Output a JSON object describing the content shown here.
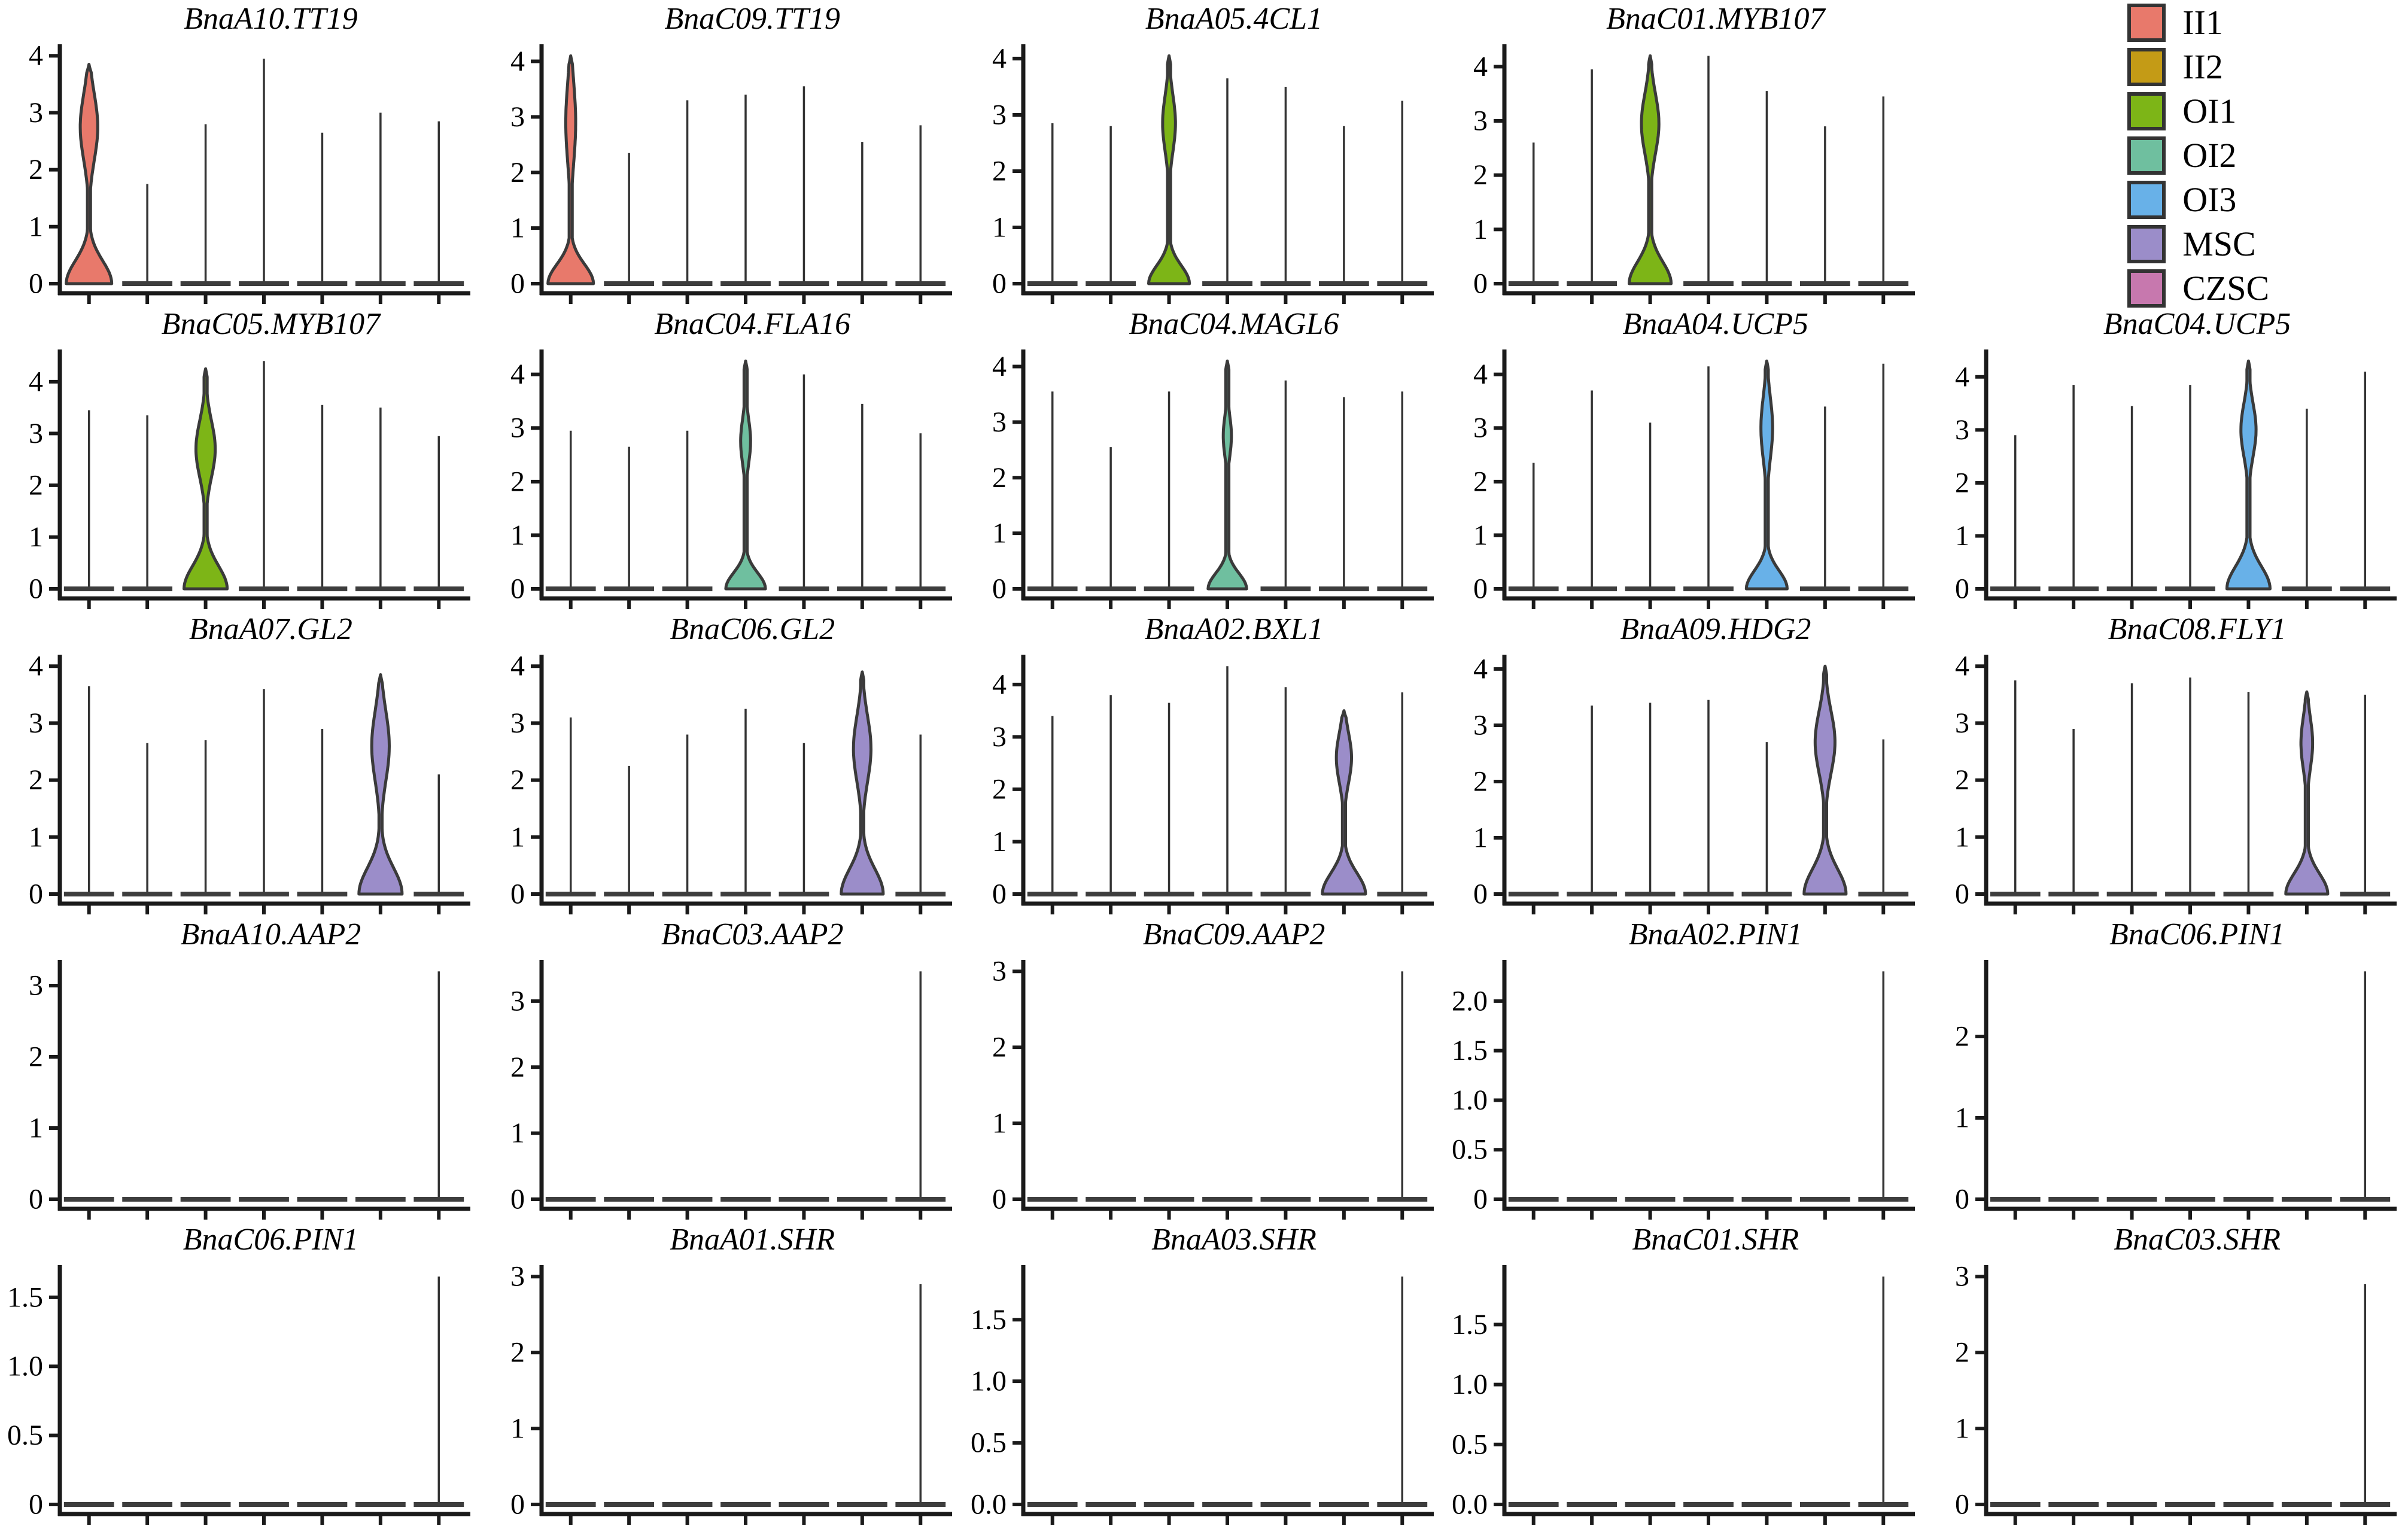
{
  "figure": {
    "background": "#ffffff",
    "grid": {
      "rows": 5,
      "cols": 5
    }
  },
  "legend": {
    "position": "top-right",
    "items": [
      {
        "label": "II1",
        "color": "#E8796B"
      },
      {
        "label": "II2",
        "color": "#C49B16"
      },
      {
        "label": "OI1",
        "color": "#7DB517"
      },
      {
        "label": "OI2",
        "color": "#6FBF9F"
      },
      {
        "label": "OI3",
        "color": "#68B1E8"
      },
      {
        "label": "MSC",
        "color": "#9B8DC9"
      },
      {
        "label": "CZSC",
        "color": "#C778AE"
      }
    ]
  },
  "chart_data": [
    {
      "type": "violin",
      "title": "BnaA10.TT19",
      "row": 1,
      "col": 1,
      "categories": [
        "II1",
        "II2",
        "OI1",
        "OI2",
        "OI3",
        "MSC",
        "CZSC"
      ],
      "yticks": [
        0,
        1,
        2,
        3,
        4
      ],
      "ytick_labels": [
        "0",
        "1",
        "2",
        "3",
        "4"
      ],
      "spikes": [
        null,
        1.75,
        2.8,
        3.95,
        2.65,
        3.0,
        2.85
      ],
      "violin": {
        "category": "II1",
        "pos": 0,
        "color": "#E8796B",
        "tip": 3.85,
        "base_w": 0.78,
        "base_s": 0.4,
        "bulge_w": 0.3,
        "bulge_mu": 2.75,
        "bulge_s": 0.58
      }
    },
    {
      "type": "violin",
      "title": "BnaC09.TT19",
      "row": 1,
      "col": 2,
      "categories": [
        "II1",
        "II2",
        "OI1",
        "OI2",
        "OI3",
        "MSC",
        "CZSC"
      ],
      "yticks": [
        0,
        1,
        2,
        3,
        4
      ],
      "ytick_labels": [
        "0",
        "1",
        "2",
        "3",
        "4"
      ],
      "spikes": [
        null,
        2.35,
        3.3,
        3.4,
        3.55,
        2.55,
        2.85
      ],
      "violin": {
        "category": "II1",
        "pos": 0,
        "color": "#E8796B",
        "tip": 4.1,
        "base_w": 0.78,
        "base_s": 0.35,
        "bulge_w": 0.17,
        "bulge_mu": 2.9,
        "bulge_s": 0.72
      }
    },
    {
      "type": "violin",
      "title": "BnaA05.4CL1",
      "row": 1,
      "col": 3,
      "categories": [
        "II1",
        "II2",
        "OI1",
        "OI2",
        "OI3",
        "MSC",
        "CZSC"
      ],
      "yticks": [
        0,
        1,
        2,
        3,
        4
      ],
      "ytick_labels": [
        "0",
        "1",
        "2",
        "3",
        "4"
      ],
      "spikes": [
        2.85,
        2.8,
        null,
        3.65,
        3.5,
        2.8,
        3.25
      ],
      "violin": {
        "category": "OI1",
        "pos": 2,
        "color": "#7DB517",
        "tip": 4.05,
        "base_w": 0.7,
        "base_s": 0.32,
        "bulge_w": 0.22,
        "bulge_mu": 2.85,
        "bulge_s": 0.5
      }
    },
    {
      "type": "violin",
      "title": "BnaC01.MYB107",
      "row": 1,
      "col": 4,
      "categories": [
        "II1",
        "II2",
        "OI1",
        "OI2",
        "OI3",
        "MSC",
        "CZSC"
      ],
      "yticks": [
        0,
        1,
        2,
        3,
        4
      ],
      "ytick_labels": [
        "0",
        "1",
        "2",
        "3",
        "4"
      ],
      "spikes": [
        2.6,
        3.95,
        null,
        4.2,
        3.55,
        2.9,
        3.45
      ],
      "violin": {
        "category": "OI1",
        "pos": 2,
        "color": "#7DB517",
        "tip": 4.2,
        "base_w": 0.72,
        "base_s": 0.4,
        "bulge_w": 0.3,
        "bulge_mu": 2.95,
        "bulge_s": 0.55
      }
    },
    {
      "type": "violin",
      "title": "BnaC05.MYB107",
      "row": 2,
      "col": 1,
      "categories": [
        "II1",
        "II2",
        "OI1",
        "OI2",
        "OI3",
        "MSC",
        "CZSC"
      ],
      "yticks": [
        0,
        1,
        2,
        3,
        4
      ],
      "ytick_labels": [
        "0",
        "1",
        "2",
        "3",
        "4"
      ],
      "spikes": [
        3.45,
        3.35,
        null,
        4.4,
        3.55,
        3.5,
        2.95
      ],
      "violin": {
        "category": "OI1",
        "pos": 2,
        "color": "#7DB517",
        "tip": 4.25,
        "base_w": 0.74,
        "base_s": 0.44,
        "bulge_w": 0.33,
        "bulge_mu": 2.7,
        "bulge_s": 0.55
      }
    },
    {
      "type": "violin",
      "title": "BnaC04.FLA16",
      "row": 2,
      "col": 2,
      "categories": [
        "II1",
        "II2",
        "OI1",
        "OI2",
        "OI3",
        "MSC",
        "CZSC"
      ],
      "yticks": [
        0,
        1,
        2,
        3,
        4
      ],
      "ytick_labels": [
        "0",
        "1",
        "2",
        "3",
        "4"
      ],
      "spikes": [
        2.95,
        2.65,
        2.95,
        null,
        4.0,
        3.45,
        2.9
      ],
      "violin": {
        "category": "OI2",
        "pos": 3,
        "color": "#6FBF9F",
        "tip": 4.25,
        "base_w": 0.68,
        "base_s": 0.3,
        "bulge_w": 0.17,
        "bulge_mu": 2.75,
        "bulge_s": 0.42
      }
    },
    {
      "type": "violin",
      "title": "BnaC04.MAGL6",
      "row": 2,
      "col": 3,
      "categories": [
        "II1",
        "II2",
        "OI1",
        "OI2",
        "OI3",
        "MSC",
        "CZSC"
      ],
      "yticks": [
        0,
        1,
        2,
        3,
        4
      ],
      "ytick_labels": [
        "0",
        "1",
        "2",
        "3",
        "4"
      ],
      "spikes": [
        3.55,
        2.55,
        3.55,
        null,
        3.75,
        3.45,
        3.55
      ],
      "violin": {
        "category": "OI2",
        "pos": 3,
        "color": "#6FBF9F",
        "tip": 4.1,
        "base_w": 0.66,
        "base_s": 0.28,
        "bulge_w": 0.14,
        "bulge_mu": 2.75,
        "bulge_s": 0.36
      }
    },
    {
      "type": "violin",
      "title": "BnaA04.UCP5",
      "row": 2,
      "col": 4,
      "categories": [
        "II1",
        "II2",
        "OI1",
        "OI2",
        "OI3",
        "MSC",
        "CZSC"
      ],
      "yticks": [
        0,
        1,
        2,
        3,
        4
      ],
      "ytick_labels": [
        "0",
        "1",
        "2",
        "3",
        "4"
      ],
      "spikes": [
        2.35,
        3.7,
        3.1,
        4.15,
        null,
        3.4,
        4.2
      ],
      "violin": {
        "category": "OI3",
        "pos": 4,
        "color": "#68B1E8",
        "tip": 4.25,
        "base_w": 0.7,
        "base_s": 0.34,
        "bulge_w": 0.2,
        "bulge_mu": 3.0,
        "bulge_s": 0.58
      }
    },
    {
      "type": "violin",
      "title": "BnaC04.UCP5",
      "row": 2,
      "col": 5,
      "categories": [
        "II1",
        "II2",
        "OI1",
        "OI2",
        "OI3",
        "MSC",
        "CZSC"
      ],
      "yticks": [
        0,
        1,
        2,
        3,
        4
      ],
      "ytick_labels": [
        "0",
        "1",
        "2",
        "3",
        "4"
      ],
      "spikes": [
        2.9,
        3.85,
        3.45,
        3.85,
        null,
        3.4,
        4.1
      ],
      "violin": {
        "category": "OI3",
        "pos": 4,
        "color": "#68B1E8",
        "tip": 4.3,
        "base_w": 0.74,
        "base_s": 0.42,
        "bulge_w": 0.26,
        "bulge_mu": 3.0,
        "bulge_s": 0.5
      }
    },
    {
      "type": "violin",
      "title": "BnaA07.GL2",
      "row": 3,
      "col": 1,
      "categories": [
        "II1",
        "II2",
        "OI1",
        "OI2",
        "OI3",
        "MSC",
        "CZSC"
      ],
      "yticks": [
        0,
        1,
        2,
        3,
        4
      ],
      "ytick_labels": [
        "0",
        "1",
        "2",
        "3",
        "4"
      ],
      "spikes": [
        3.65,
        2.65,
        2.7,
        3.6,
        2.9,
        null,
        2.1
      ],
      "violin": {
        "category": "MSC",
        "pos": 5,
        "color": "#9B8DC9",
        "tip": 3.85,
        "base_w": 0.74,
        "base_s": 0.46,
        "bulge_w": 0.3,
        "bulge_mu": 2.6,
        "bulge_s": 0.62
      }
    },
    {
      "type": "violin",
      "title": "BnaC06.GL2",
      "row": 3,
      "col": 2,
      "categories": [
        "II1",
        "II2",
        "OI1",
        "OI2",
        "OI3",
        "MSC",
        "CZSC"
      ],
      "yticks": [
        0,
        1,
        2,
        3,
        4
      ],
      "ytick_labels": [
        "0",
        "1",
        "2",
        "3",
        "4"
      ],
      "spikes": [
        3.1,
        2.25,
        2.8,
        3.25,
        2.65,
        null,
        2.8
      ],
      "violin": {
        "category": "MSC",
        "pos": 5,
        "color": "#9B8DC9",
        "tip": 3.9,
        "base_w": 0.72,
        "base_s": 0.44,
        "bulge_w": 0.3,
        "bulge_mu": 2.55,
        "bulge_s": 0.58
      }
    },
    {
      "type": "violin",
      "title": "BnaA02.BXL1",
      "row": 3,
      "col": 3,
      "categories": [
        "II1",
        "II2",
        "OI1",
        "OI2",
        "OI3",
        "MSC",
        "CZSC"
      ],
      "yticks": [
        0,
        1,
        2,
        3,
        4
      ],
      "ytick_labels": [
        "0",
        "1",
        "2",
        "3",
        "4"
      ],
      "spikes": [
        3.4,
        3.8,
        3.65,
        4.35,
        3.95,
        null,
        3.85
      ],
      "violin": {
        "category": "MSC",
        "pos": 5,
        "color": "#9B8DC9",
        "tip": 3.5,
        "base_w": 0.74,
        "base_s": 0.4,
        "bulge_w": 0.26,
        "bulge_mu": 2.6,
        "bulge_s": 0.48
      }
    },
    {
      "type": "violin",
      "title": "BnaA09.HDG2",
      "row": 3,
      "col": 4,
      "categories": [
        "II1",
        "II2",
        "OI1",
        "OI2",
        "OI3",
        "MSC",
        "CZSC"
      ],
      "yticks": [
        0,
        1,
        2,
        3,
        4
      ],
      "ytick_labels": [
        "0",
        "1",
        "2",
        "3",
        "4"
      ],
      "spikes": [
        0,
        3.35,
        3.4,
        3.45,
        2.7,
        null,
        2.75
      ],
      "violin": {
        "category": "MSC",
        "pos": 5,
        "color": "#9B8DC9",
        "tip": 4.05,
        "base_w": 0.72,
        "base_s": 0.44,
        "bulge_w": 0.34,
        "bulge_mu": 2.7,
        "bulge_s": 0.55
      }
    },
    {
      "type": "violin",
      "title": "BnaC08.FLY1",
      "row": 3,
      "col": 5,
      "categories": [
        "II1",
        "II2",
        "OI1",
        "OI2",
        "OI3",
        "MSC",
        "CZSC"
      ],
      "yticks": [
        0,
        1,
        2,
        3,
        4
      ],
      "ytick_labels": [
        "0",
        "1",
        "2",
        "3",
        "4"
      ],
      "spikes": [
        3.75,
        2.9,
        3.7,
        3.8,
        3.55,
        null,
        3.5
      ],
      "violin": {
        "category": "MSC",
        "pos": 5,
        "color": "#9B8DC9",
        "tip": 3.55,
        "base_w": 0.72,
        "base_s": 0.36,
        "bulge_w": 0.2,
        "bulge_mu": 2.65,
        "bulge_s": 0.45
      }
    },
    {
      "type": "violin",
      "title": "BnaA10.AAP2",
      "row": 4,
      "col": 1,
      "categories": [
        "II1",
        "II2",
        "OI1",
        "OI2",
        "OI3",
        "MSC",
        "CZSC"
      ],
      "yticks": [
        0,
        1,
        2,
        3
      ],
      "ytick_labels": [
        "0",
        "1",
        "2",
        "3"
      ],
      "spikes": [
        0,
        0,
        0,
        0,
        0,
        0,
        3.2
      ],
      "violin": null
    },
    {
      "type": "violin",
      "title": "BnaC03.AAP2",
      "row": 4,
      "col": 2,
      "categories": [
        "II1",
        "II2",
        "OI1",
        "OI2",
        "OI3",
        "MSC",
        "CZSC"
      ],
      "yticks": [
        0,
        1,
        2,
        3
      ],
      "ytick_labels": [
        "0",
        "1",
        "2",
        "3"
      ],
      "spikes": [
        0,
        0,
        0,
        0,
        0,
        0,
        3.45
      ],
      "violin": null
    },
    {
      "type": "violin",
      "title": "BnaC09.AAP2",
      "row": 4,
      "col": 3,
      "categories": [
        "II1",
        "II2",
        "OI1",
        "OI2",
        "OI3",
        "MSC",
        "CZSC"
      ],
      "yticks": [
        0,
        1,
        2,
        3
      ],
      "ytick_labels": [
        "0",
        "1",
        "2",
        "3"
      ],
      "spikes": [
        0,
        0,
        0,
        0,
        0,
        0,
        3.0
      ],
      "violin": null
    },
    {
      "type": "violin",
      "title": "BnaA02.PIN1",
      "row": 4,
      "col": 4,
      "categories": [
        "II1",
        "II2",
        "OI1",
        "OI2",
        "OI3",
        "MSC",
        "CZSC"
      ],
      "yticks": [
        0,
        0.5,
        1,
        1.5,
        2
      ],
      "ytick_labels": [
        "0",
        "0.5",
        "1.0",
        "1.5",
        "2.0"
      ],
      "spikes": [
        0,
        0,
        0,
        0,
        0,
        0,
        2.3
      ],
      "violin": null
    },
    {
      "type": "violin",
      "title": "BnaC06.PIN1",
      "row": 4,
      "col": 5,
      "categories": [
        "II1",
        "II2",
        "OI1",
        "OI2",
        "OI3",
        "MSC",
        "CZSC"
      ],
      "yticks": [
        0,
        1,
        2
      ],
      "ytick_labels": [
        "0",
        "1",
        "2"
      ],
      "spikes": [
        0,
        0,
        0,
        0,
        0,
        0,
        2.8
      ],
      "violin": null
    },
    {
      "type": "violin",
      "title": "BnaC06.PIN1",
      "row": 5,
      "col": 1,
      "categories": [
        "II1",
        "II2",
        "OI1",
        "OI2",
        "OI3",
        "MSC",
        "CZSC"
      ],
      "yticks": [
        0,
        0.5,
        1,
        1.5
      ],
      "ytick_labels": [
        "0",
        "0.5",
        "1.0",
        "1.5"
      ],
      "spikes": [
        0,
        0,
        0,
        0,
        0,
        0,
        1.65
      ],
      "violin": null
    },
    {
      "type": "violin",
      "title": "BnaA01.SHR",
      "row": 5,
      "col": 2,
      "categories": [
        "II1",
        "II2",
        "OI1",
        "OI2",
        "OI3",
        "MSC",
        "CZSC"
      ],
      "yticks": [
        0,
        1,
        2,
        3
      ],
      "ytick_labels": [
        "0",
        "1",
        "2",
        "3"
      ],
      "spikes": [
        0,
        0,
        0,
        0,
        0,
        0,
        2.9
      ],
      "violin": null
    },
    {
      "type": "violin",
      "title": "BnaA03.SHR",
      "row": 5,
      "col": 3,
      "categories": [
        "II1",
        "II2",
        "OI1",
        "OI2",
        "OI3",
        "MSC",
        "CZSC"
      ],
      "yticks": [
        0,
        0.5,
        1,
        1.5
      ],
      "ytick_labels": [
        "0.0",
        "0.5",
        "1.0",
        "1.5"
      ],
      "spikes": [
        0,
        0,
        0,
        0,
        0,
        0,
        1.85
      ],
      "violin": null
    },
    {
      "type": "violin",
      "title": "BnaC01.SHR",
      "row": 5,
      "col": 4,
      "categories": [
        "II1",
        "II2",
        "OI1",
        "OI2",
        "OI3",
        "MSC",
        "CZSC"
      ],
      "yticks": [
        0,
        0.5,
        1,
        1.5
      ],
      "ytick_labels": [
        "0.0",
        "0.5",
        "1.0",
        "1.5"
      ],
      "spikes": [
        0,
        0,
        0,
        0,
        0,
        0,
        1.9
      ],
      "violin": null
    },
    {
      "type": "violin",
      "title": "BnaC03.SHR",
      "row": 5,
      "col": 5,
      "categories": [
        "II1",
        "II2",
        "OI1",
        "OI2",
        "OI3",
        "MSC",
        "CZSC"
      ],
      "yticks": [
        0,
        1,
        2,
        3
      ],
      "ytick_labels": [
        "0",
        "1",
        "2",
        "3"
      ],
      "spikes": [
        0,
        0,
        0,
        0,
        0,
        0,
        2.9
      ],
      "violin": null
    }
  ],
  "style": {
    "axis_color": "#1a1a1a",
    "spike_color": "#333333",
    "dash_color": "#3d3d3d",
    "violin_outline": "#3a3a3a"
  }
}
